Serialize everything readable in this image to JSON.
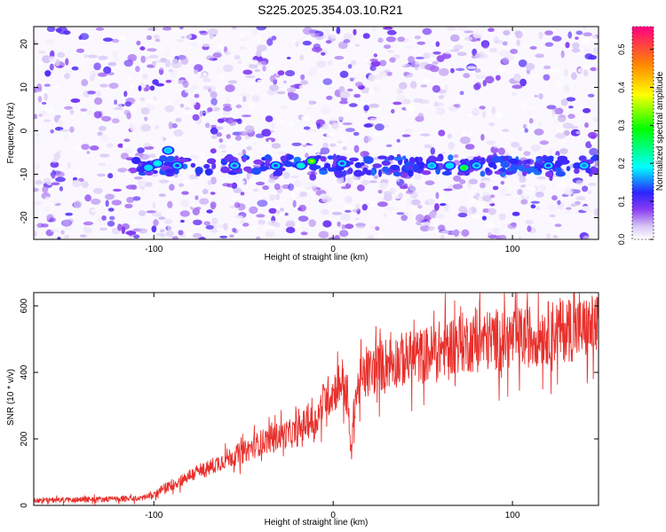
{
  "title": "S225.2025.354.03.10.R21",
  "colors": {
    "snr_line": "#e8302c",
    "speckle": "#7a2fe0",
    "axis": "#000000"
  },
  "chart_data": [
    {
      "type": "heatmap",
      "title": "S225.2025.354.03.10.R21",
      "xlabel": "Height of straight line (km)",
      "ylabel": "Frequency (Hz)",
      "xlim": [
        -167,
        148
      ],
      "ylim": [
        -25,
        24
      ],
      "xticks": [
        -100,
        0,
        100
      ],
      "yticks": [
        -20,
        -10,
        0,
        10,
        20
      ],
      "colorbar": {
        "label": "Normalized spectral amplitude",
        "range": [
          0.0,
          0.56
        ],
        "ticks": [
          0.0,
          0.1,
          0.2,
          0.3,
          0.4,
          0.5
        ],
        "colormap": "rainbow (white-violet-blue-cyan-green-yellow-red)"
      },
      "ridge": {
        "frequency_hz": -8,
        "x_range": [
          -110,
          148
        ]
      },
      "bright_spots": [
        {
          "x": -103,
          "y": -8.5,
          "v": 0.18
        },
        {
          "x": -98,
          "y": -7.5,
          "v": 0.2
        },
        {
          "x": -92,
          "y": -4.5,
          "v": 0.17
        },
        {
          "x": -87,
          "y": -8,
          "v": 0.12
        },
        {
          "x": -55,
          "y": -8,
          "v": 0.1
        },
        {
          "x": -32,
          "y": -8,
          "v": 0.13
        },
        {
          "x": -18,
          "y": -8,
          "v": 0.22
        },
        {
          "x": -12,
          "y": -7,
          "v": 0.35
        },
        {
          "x": 5,
          "y": -7.5,
          "v": 0.11
        },
        {
          "x": 55,
          "y": -8,
          "v": 0.16
        },
        {
          "x": 65,
          "y": -8,
          "v": 0.18
        },
        {
          "x": 73,
          "y": -8.5,
          "v": 0.3
        },
        {
          "x": 80,
          "y": -8,
          "v": 0.14
        },
        {
          "x": 120,
          "y": -8,
          "v": 0.12
        },
        {
          "x": 140,
          "y": -8,
          "v": 0.15
        }
      ]
    },
    {
      "type": "line",
      "xlabel": "Height of straight line (km)",
      "ylabel": "SNR (10 * v/v)",
      "xlim": [
        -167,
        148
      ],
      "ylim": [
        0,
        640
      ],
      "xticks": [
        -100,
        0,
        100
      ],
      "yticks": [
        0,
        200,
        400,
        600
      ],
      "series": [
        {
          "x": [
            -167,
            -140,
            -110,
            -100,
            -95,
            -90,
            -85,
            -80,
            -70,
            -60,
            -50,
            -40,
            -30,
            -20,
            -15,
            -10,
            -5,
            0,
            5,
            8,
            10,
            12,
            15,
            20,
            30,
            40,
            50,
            60,
            70,
            80,
            90,
            100,
            110,
            120,
            130,
            140,
            148
          ],
          "y": [
            15,
            18,
            20,
            30,
            50,
            60,
            75,
            90,
            110,
            140,
            160,
            190,
            210,
            220,
            250,
            250,
            320,
            340,
            380,
            320,
            150,
            320,
            370,
            400,
            430,
            440,
            450,
            470,
            490,
            490,
            500,
            500,
            510,
            520,
            530,
            530,
            540
          ]
        }
      ]
    }
  ]
}
